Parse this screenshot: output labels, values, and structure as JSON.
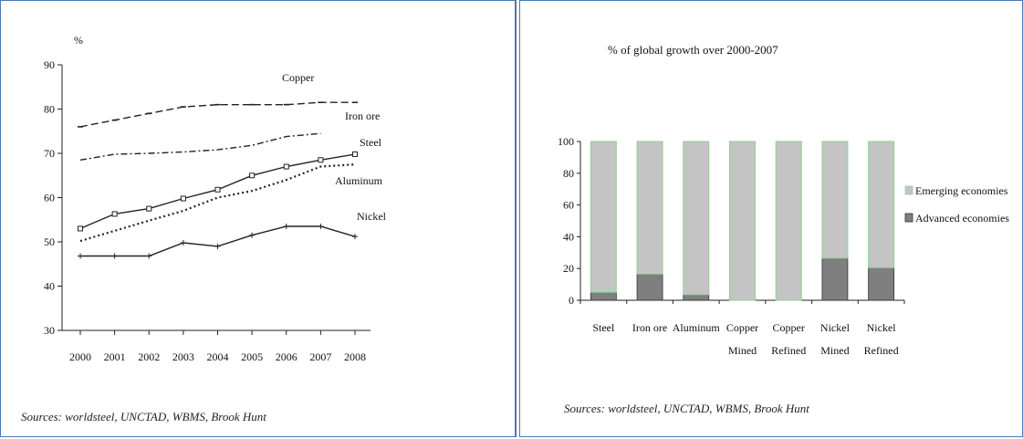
{
  "left_panel": {
    "source": "Sources: worldsteel, UNCTAD, WBMS, Brook Hunt"
  },
  "right_panel": {
    "source": "Sources: worldsteel, UNCTAD, WBMS, Brook Hunt"
  },
  "chart_data": [
    {
      "type": "line",
      "title": "",
      "ylabel": "%",
      "xlabel": "",
      "x": [
        "2000",
        "2001",
        "2002",
        "2003",
        "2004",
        "2005",
        "2006",
        "2007",
        "2008"
      ],
      "ylim": [
        30,
        90
      ],
      "yticks": [
        30,
        40,
        50,
        60,
        70,
        80,
        90
      ],
      "grid": false,
      "series": [
        {
          "name": "Copper",
          "style": "dashed",
          "values": [
            76,
            77.5,
            79,
            80.5,
            81,
            81,
            81,
            81.5,
            81.5
          ]
        },
        {
          "name": "Iron ore",
          "style": "dash-dot",
          "values": [
            68.5,
            69.8,
            70,
            70.3,
            70.8,
            71.8,
            73.8,
            74.5,
            null
          ]
        },
        {
          "name": "Steel",
          "style": "solid-square",
          "values": [
            53,
            56.3,
            57.5,
            59.8,
            61.8,
            65,
            67,
            68.5,
            69.8
          ]
        },
        {
          "name": "Aluminum",
          "style": "dotted",
          "values": [
            50.2,
            52.5,
            54.8,
            57,
            60,
            61.5,
            64,
            67,
            67.5
          ]
        },
        {
          "name": "Nickel",
          "style": "solid-cross",
          "values": [
            46.8,
            46.8,
            46.8,
            49.8,
            49,
            51.5,
            53.5,
            53.5,
            51.2
          ]
        }
      ]
    },
    {
      "type": "bar",
      "stacked": true,
      "title": "% of global growth over 2000-2007",
      "xlabel": "",
      "ylabel": "",
      "categories": [
        [
          "Steel"
        ],
        [
          "Iron ore"
        ],
        [
          "Aluminum"
        ],
        [
          "Copper",
          "Mined"
        ],
        [
          "Copper",
          "Refined"
        ],
        [
          "Nickel",
          "Mined"
        ],
        [
          "Nickel",
          "Refined"
        ]
      ],
      "ylim": [
        0,
        100
      ],
      "yticks": [
        0,
        20,
        40,
        60,
        80,
        100
      ],
      "legend_position": "right",
      "series": [
        {
          "name": "Advanced economies",
          "color": "#7f7f7f",
          "values": [
            5,
            16.5,
            3.5,
            0,
            0,
            26.5,
            20.5
          ]
        },
        {
          "name": "Emerging economies",
          "color": "#c4c4c4",
          "values": [
            95,
            83.5,
            96.5,
            100,
            100,
            73.5,
            79.5
          ]
        }
      ],
      "legend_order": [
        "Emerging economies",
        "Advanced economies"
      ]
    }
  ]
}
